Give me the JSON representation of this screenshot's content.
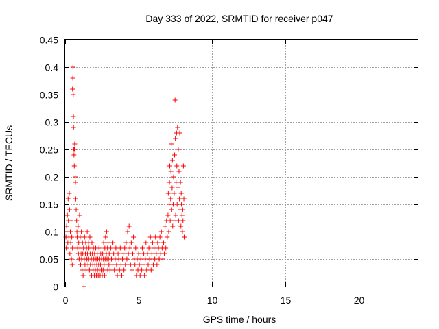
{
  "chart_data": {
    "type": "scatter",
    "title": "Day 333 of 2022, SRMTID for receiver p047",
    "xlabel": "GPS time / hours",
    "ylabel": "SRMTID / TECUs",
    "xlim": [
      0,
      24
    ],
    "ylim": [
      0,
      0.45
    ],
    "xticks": [
      0,
      5,
      10,
      15,
      20
    ],
    "xtick_labels": [
      "0",
      "5",
      "10",
      "15",
      "20"
    ],
    "yticks": [
      0,
      0.05,
      0.1,
      0.15,
      0.2,
      0.25,
      0.3,
      0.35,
      0.4,
      0.45
    ],
    "ytick_labels": [
      "0",
      "0.05",
      "0.1",
      "0.15",
      "0.2",
      "0.25",
      "0.3",
      "0.35",
      "0.4",
      "0.45"
    ],
    "grid": true,
    "marker": "plus",
    "color": "#ff0000",
    "series": [
      {
        "name": "SRMTID",
        "points": [
          [
            0.05,
            0.09
          ],
          [
            0.08,
            0.07
          ],
          [
            0.1,
            0.11
          ],
          [
            0.12,
            0.1
          ],
          [
            0.15,
            0.13
          ],
          [
            0.18,
            0.08
          ],
          [
            0.2,
            0.16
          ],
          [
            0.22,
            0.12
          ],
          [
            0.25,
            0.09
          ],
          [
            0.28,
            0.17
          ],
          [
            0.3,
            0.14
          ],
          [
            0.32,
            0.06
          ],
          [
            0.35,
            0.1
          ],
          [
            0.38,
            0.08
          ],
          [
            0.4,
            0.12
          ],
          [
            0.42,
            0.05
          ],
          [
            0.45,
            0.09
          ],
          [
            0.48,
            0.04
          ],
          [
            0.5,
            0.07
          ],
          [
            0.5,
            0.36
          ],
          [
            0.52,
            0.38
          ],
          [
            0.53,
            0.4
          ],
          [
            0.55,
            0.35
          ],
          [
            0.56,
            0.31
          ],
          [
            0.57,
            0.29
          ],
          [
            0.58,
            0.25
          ],
          [
            0.6,
            0.24
          ],
          [
            0.62,
            0.22
          ],
          [
            0.63,
            0.25
          ],
          [
            0.65,
            0.26
          ],
          [
            0.68,
            0.2
          ],
          [
            0.7,
            0.19
          ],
          [
            0.72,
            0.16
          ],
          [
            0.75,
            0.14
          ],
          [
            0.78,
            0.12
          ],
          [
            0.8,
            0.1
          ],
          [
            0.82,
            0.09
          ],
          [
            0.85,
            0.07
          ],
          [
            0.88,
            0.11
          ],
          [
            0.9,
            0.06
          ],
          [
            0.92,
            0.08
          ],
          [
            0.95,
            0.05
          ],
          [
            0.98,
            0.13
          ],
          [
            1.0,
            0.07
          ],
          [
            1.02,
            0.09
          ],
          [
            1.05,
            0.04
          ],
          [
            1.08,
            0.06
          ],
          [
            1.1,
            0.1
          ],
          [
            1.12,
            0.05
          ],
          [
            1.15,
            0.03
          ],
          [
            1.18,
            0.08
          ],
          [
            1.2,
            0.06
          ],
          [
            1.22,
            0.02
          ],
          [
            1.25,
            0.07
          ],
          [
            1.28,
            0.0
          ],
          [
            1.3,
            0.05
          ],
          [
            1.32,
            0.09
          ],
          [
            1.35,
            0.04
          ],
          [
            1.38,
            0.06
          ],
          [
            1.4,
            0.08
          ],
          [
            1.42,
            0.03
          ],
          [
            1.45,
            0.07
          ],
          [
            1.48,
            0.05
          ],
          [
            1.5,
            0.1
          ],
          [
            1.52,
            0.06
          ],
          [
            1.55,
            0.04
          ],
          [
            1.58,
            0.08
          ],
          [
            1.6,
            0.05
          ],
          [
            1.62,
            0.07
          ],
          [
            1.65,
            0.03
          ],
          [
            1.68,
            0.09
          ],
          [
            1.7,
            0.06
          ],
          [
            1.72,
            0.04
          ],
          [
            1.75,
            0.07
          ],
          [
            1.78,
            0.05
          ],
          [
            1.8,
            0.02
          ],
          [
            1.82,
            0.08
          ],
          [
            1.85,
            0.06
          ],
          [
            1.88,
            0.04
          ],
          [
            1.9,
            0.03
          ],
          [
            1.92,
            0.07
          ],
          [
            1.95,
            0.05
          ],
          [
            1.98,
            0.02
          ],
          [
            2.0,
            0.06
          ],
          [
            2.02,
            0.04
          ],
          [
            2.05,
            0.03
          ],
          [
            2.08,
            0.07
          ],
          [
            2.1,
            0.05
          ],
          [
            2.12,
            0.02
          ],
          [
            2.15,
            0.04
          ],
          [
            2.18,
            0.06
          ],
          [
            2.2,
            0.03
          ],
          [
            2.22,
            0.05
          ],
          [
            2.25,
            0.02
          ],
          [
            2.28,
            0.04
          ],
          [
            2.3,
            0.07
          ],
          [
            2.32,
            0.03
          ],
          [
            2.35,
            0.05
          ],
          [
            2.38,
            0.02
          ],
          [
            2.4,
            0.04
          ],
          [
            2.42,
            0.06
          ],
          [
            2.45,
            0.03
          ],
          [
            2.48,
            0.05
          ],
          [
            2.5,
            0.04
          ],
          [
            2.52,
            0.02
          ],
          [
            2.55,
            0.06
          ],
          [
            2.58,
            0.03
          ],
          [
            2.6,
            0.05
          ],
          [
            2.62,
            0.08
          ],
          [
            2.65,
            0.04
          ],
          [
            2.68,
            0.02
          ],
          [
            2.7,
            0.07
          ],
          [
            2.72,
            0.05
          ],
          [
            2.75,
            0.09
          ],
          [
            2.78,
            0.04
          ],
          [
            2.8,
            0.06
          ],
          [
            2.82,
            0.1
          ],
          [
            2.85,
            0.05
          ],
          [
            2.88,
            0.07
          ],
          [
            2.9,
            0.03
          ],
          [
            2.92,
            0.08
          ],
          [
            2.95,
            0.05
          ],
          [
            2.98,
            0.04
          ],
          [
            3.0,
            0.06
          ],
          [
            3.05,
            0.03
          ],
          [
            3.1,
            0.07
          ],
          [
            3.15,
            0.05
          ],
          [
            3.2,
            0.04
          ],
          [
            3.25,
            0.08
          ],
          [
            3.3,
            0.06
          ],
          [
            3.35,
            0.03
          ],
          [
            3.4,
            0.05
          ],
          [
            3.45,
            0.07
          ],
          [
            3.5,
            0.04
          ],
          [
            3.55,
            0.02
          ],
          [
            3.6,
            0.06
          ],
          [
            3.65,
            0.05
          ],
          [
            3.7,
            0.03
          ],
          [
            3.75,
            0.07
          ],
          [
            3.8,
            0.04
          ],
          [
            3.85,
            0.02
          ],
          [
            3.9,
            0.05
          ],
          [
            3.95,
            0.06
          ],
          [
            4.0,
            0.03
          ],
          [
            4.05,
            0.07
          ],
          [
            4.1,
            0.04
          ],
          [
            4.15,
            0.08
          ],
          [
            4.2,
            0.05
          ],
          [
            4.25,
            0.1
          ],
          [
            4.3,
            0.06
          ],
          [
            4.35,
            0.11
          ],
          [
            4.4,
            0.07
          ],
          [
            4.45,
            0.04
          ],
          [
            4.5,
            0.08
          ],
          [
            4.55,
            0.03
          ],
          [
            4.6,
            0.06
          ],
          [
            4.65,
            0.09
          ],
          [
            4.7,
            0.05
          ],
          [
            4.75,
            0.04
          ],
          [
            4.8,
            0.07
          ],
          [
            4.85,
            0.02
          ],
          [
            4.9,
            0.05
          ],
          [
            4.95,
            0.03
          ],
          [
            5.0,
            0.06
          ],
          [
            5.05,
            0.04
          ],
          [
            5.1,
            0.02
          ],
          [
            5.15,
            0.05
          ],
          [
            5.2,
            0.03
          ],
          [
            5.25,
            0.07
          ],
          [
            5.3,
            0.04
          ],
          [
            5.35,
            0.06
          ],
          [
            5.4,
            0.02
          ],
          [
            5.45,
            0.05
          ],
          [
            5.5,
            0.08
          ],
          [
            5.55,
            0.03
          ],
          [
            5.6,
            0.06
          ],
          [
            5.65,
            0.04
          ],
          [
            5.7,
            0.07
          ],
          [
            5.75,
            0.05
          ],
          [
            5.8,
            0.09
          ],
          [
            5.85,
            0.03
          ],
          [
            5.9,
            0.06
          ],
          [
            5.95,
            0.08
          ],
          [
            6.0,
            0.04
          ],
          [
            6.05,
            0.07
          ],
          [
            6.1,
            0.05
          ],
          [
            6.15,
            0.09
          ],
          [
            6.2,
            0.06
          ],
          [
            6.25,
            0.04
          ],
          [
            6.3,
            0.08
          ],
          [
            6.35,
            0.07
          ],
          [
            6.4,
            0.05
          ],
          [
            6.45,
            0.09
          ],
          [
            6.5,
            0.06
          ],
          [
            6.55,
            0.1
          ],
          [
            6.6,
            0.07
          ],
          [
            6.65,
            0.05
          ],
          [
            6.7,
            0.08
          ],
          [
            6.75,
            0.06
          ],
          [
            6.8,
            0.11
          ],
          [
            6.85,
            0.07
          ],
          [
            6.9,
            0.12
          ],
          [
            6.95,
            0.09
          ],
          [
            7.0,
            0.13
          ],
          [
            7.02,
            0.17
          ],
          [
            7.05,
            0.1
          ],
          [
            7.08,
            0.15
          ],
          [
            7.1,
            0.19
          ],
          [
            7.12,
            0.22
          ],
          [
            7.15,
            0.12
          ],
          [
            7.18,
            0.16
          ],
          [
            7.2,
            0.21
          ],
          [
            7.22,
            0.26
          ],
          [
            7.25,
            0.14
          ],
          [
            7.28,
            0.18
          ],
          [
            7.3,
            0.23
          ],
          [
            7.32,
            0.11
          ],
          [
            7.35,
            0.15
          ],
          [
            7.38,
            0.2
          ],
          [
            7.4,
            0.12
          ],
          [
            7.42,
            0.17
          ],
          [
            7.45,
            0.24
          ],
          [
            7.48,
            0.34
          ],
          [
            7.5,
            0.27
          ],
          [
            7.52,
            0.13
          ],
          [
            7.55,
            0.19
          ],
          [
            7.58,
            0.28
          ],
          [
            7.6,
            0.22
          ],
          [
            7.62,
            0.15
          ],
          [
            7.65,
            0.29
          ],
          [
            7.68,
            0.18
          ],
          [
            7.7,
            0.25
          ],
          [
            7.72,
            0.12
          ],
          [
            7.75,
            0.21
          ],
          [
            7.78,
            0.16
          ],
          [
            7.8,
            0.28
          ],
          [
            7.82,
            0.14
          ],
          [
            7.85,
            0.19
          ],
          [
            7.88,
            0.11
          ],
          [
            7.9,
            0.17
          ],
          [
            7.92,
            0.15
          ],
          [
            7.95,
            0.13
          ],
          [
            7.98,
            0.1
          ],
          [
            8.0,
            0.14
          ],
          [
            8.02,
            0.12
          ],
          [
            8.05,
            0.22
          ],
          [
            8.08,
            0.16
          ],
          [
            8.1,
            0.09
          ]
        ]
      }
    ]
  }
}
